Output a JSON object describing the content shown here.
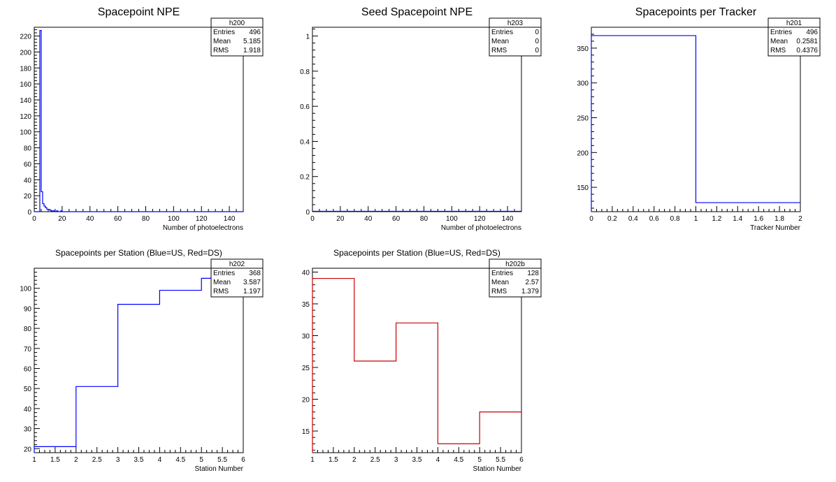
{
  "chart_data": [
    {
      "type": "histogram",
      "id": "h200",
      "title": "Spacepoint NPE",
      "xlabel": "Number of photoelectrons",
      "ylabel": "",
      "xlim": [
        0,
        150
      ],
      "ylim": [
        0,
        231
      ],
      "xticks": [
        0,
        20,
        40,
        60,
        80,
        100,
        120,
        140
      ],
      "yticks": [
        0,
        20,
        40,
        60,
        80,
        100,
        120,
        140,
        160,
        180,
        200,
        220
      ],
      "line_color": "#0000ff",
      "bin_width": 1,
      "bins_x": [
        0,
        1,
        2,
        3,
        4,
        5,
        6,
        7,
        8,
        9,
        10,
        11,
        12,
        13,
        14,
        15,
        16,
        17,
        18,
        19,
        20
      ],
      "values": [
        0,
        0,
        0,
        0,
        227,
        25,
        10,
        7,
        5,
        3,
        3,
        2,
        1,
        1,
        1,
        0,
        1,
        0,
        0,
        1,
        0
      ],
      "stats": {
        "name": "h200",
        "rows": [
          [
            "Entries",
            "496"
          ],
          [
            "Mean",
            "5.185"
          ],
          [
            "RMS",
            "1.918"
          ]
        ]
      }
    },
    {
      "type": "histogram",
      "id": "h203",
      "title": "Seed Spacepoint NPE",
      "xlabel": "Number of photoelectrons",
      "ylabel": "",
      "xlim": [
        0,
        150
      ],
      "ylim": [
        0,
        1.05
      ],
      "xticks": [
        0,
        20,
        40,
        60,
        80,
        100,
        120,
        140
      ],
      "yticks": [
        0,
        0.2,
        0.4,
        0.6,
        0.8,
        1
      ],
      "line_color": "#0000ff",
      "bin_width": 1,
      "bins_x": [],
      "values": [],
      "stats": {
        "name": "h203",
        "rows": [
          [
            "Entries",
            "0"
          ],
          [
            "Mean",
            "0"
          ],
          [
            "RMS",
            "0"
          ]
        ]
      }
    },
    {
      "type": "histogram",
      "id": "h201",
      "title": "Spacepoints per Tracker",
      "xlabel": "Tracker Number",
      "ylabel": "",
      "xlim": [
        0,
        2
      ],
      "ylim": [
        115,
        380
      ],
      "xticks": [
        0,
        0.2,
        0.4,
        0.6,
        0.8,
        1,
        1.2,
        1.4,
        1.6,
        1.8,
        2
      ],
      "yticks": [
        150,
        200,
        250,
        300,
        350
      ],
      "line_color": "#0000ff",
      "bin_width": 1,
      "bins_x": [
        0,
        1
      ],
      "values": [
        368,
        128
      ],
      "stats": {
        "name": "h201",
        "rows": [
          [
            "Entries",
            "496"
          ],
          [
            "Mean",
            "0.2581"
          ],
          [
            "RMS",
            "0.4376"
          ]
        ]
      }
    },
    {
      "type": "histogram",
      "id": "h202",
      "title": "Spacepoints per Station (Blue=US, Red=DS)",
      "xlabel": "Station Number",
      "ylabel": "",
      "xlim": [
        1,
        6
      ],
      "ylim": [
        18,
        110
      ],
      "xticks": [
        1,
        1.5,
        2,
        2.5,
        3,
        3.5,
        4,
        4.5,
        5,
        5.5,
        6
      ],
      "yticks": [
        20,
        30,
        40,
        50,
        60,
        70,
        80,
        90,
        100
      ],
      "line_color": "#0000ff",
      "bin_width": 1,
      "bins_x": [
        1,
        2,
        3,
        4,
        5
      ],
      "values": [
        21,
        51,
        92,
        99,
        105
      ],
      "stats": {
        "name": "h202",
        "rows": [
          [
            "Entries",
            "368"
          ],
          [
            "Mean",
            "3.587"
          ],
          [
            "RMS",
            "1.197"
          ]
        ]
      }
    },
    {
      "type": "histogram",
      "id": "h202b",
      "title": "Spacepoints per Station (Blue=US, Red=DS)",
      "xlabel": "Station Number",
      "ylabel": "",
      "xlim": [
        1,
        6
      ],
      "ylim": [
        11.6,
        40.6
      ],
      "xticks": [
        1,
        1.5,
        2,
        2.5,
        3,
        3.5,
        4,
        4.5,
        5,
        5.5,
        6
      ],
      "yticks": [
        15,
        20,
        25,
        30,
        35,
        40
      ],
      "line_color": "#cc0000",
      "bin_width": 1,
      "bins_x": [
        1,
        2,
        3,
        4,
        5
      ],
      "values": [
        39,
        26,
        32,
        13,
        18
      ],
      "stats": {
        "name": "h202b",
        "rows": [
          [
            "Entries",
            "128"
          ],
          [
            "Mean",
            "2.57"
          ],
          [
            "RMS",
            "1.379"
          ]
        ]
      }
    }
  ]
}
